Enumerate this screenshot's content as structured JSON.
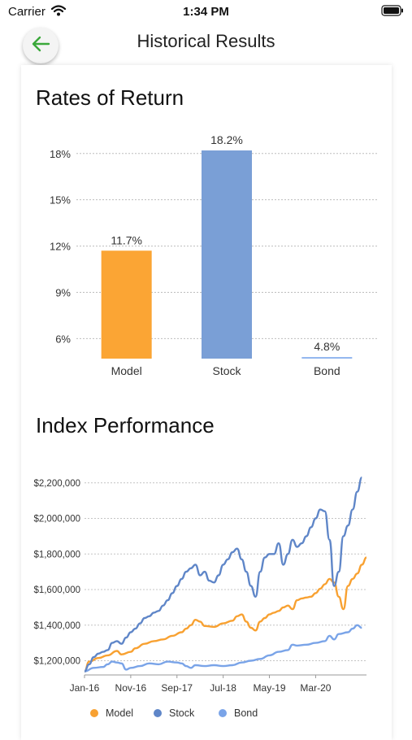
{
  "status_bar": {
    "carrier": "Carrier",
    "time": "1:34 PM"
  },
  "nav": {
    "title": "Historical Results"
  },
  "returns": {
    "title": "Rates of Return",
    "chart_data": {
      "type": "bar",
      "categories": [
        "Model",
        "Stock",
        "Bond"
      ],
      "values": [
        11.7,
        18.2,
        4.8
      ],
      "value_labels": [
        "11.7%",
        "18.2%",
        "4.8%"
      ],
      "colors": [
        "#fba534",
        "#7a9fd6",
        "#8db3ee"
      ],
      "yticks": [
        "6%",
        "9%",
        "12%",
        "15%",
        "18%"
      ],
      "ytick_values": [
        6,
        9,
        12,
        15,
        18
      ],
      "ylim": [
        4.7,
        18.2
      ],
      "grid": true
    }
  },
  "performance": {
    "title": "Index Performance",
    "chart_data": {
      "type": "line",
      "x_tick_labels": [
        "Jan-16",
        "Nov-16",
        "Sep-17",
        "Jul-18",
        "May-19",
        "Mar-20"
      ],
      "y_tick_labels": [
        "$1,200,000",
        "$1,400,000",
        "$1,600,000",
        "$1,800,000",
        "$2,000,000",
        "$2,200,000"
      ],
      "y_tick_values": [
        1200000,
        1400000,
        1600000,
        1800000,
        2000000,
        2200000
      ],
      "ylim": [
        1120000,
        2240000
      ],
      "grid": true,
      "legend_position": "bottom",
      "series": [
        {
          "name": "Model",
          "color": "#f8a131",
          "points": [
            [
              0,
              1140000
            ],
            [
              1,
              1195000
            ],
            [
              3,
              1215000
            ],
            [
              5,
              1230000
            ],
            [
              7,
              1255000
            ],
            [
              8,
              1235000
            ],
            [
              10,
              1250000
            ],
            [
              11,
              1270000
            ],
            [
              13,
              1295000
            ],
            [
              15,
              1310000
            ],
            [
              17,
              1320000
            ],
            [
              19,
              1340000
            ],
            [
              21,
              1360000
            ],
            [
              22,
              1380000
            ],
            [
              23,
              1400000
            ],
            [
              24,
              1430000
            ],
            [
              25,
              1420000
            ],
            [
              26,
              1395000
            ],
            [
              28,
              1390000
            ],
            [
              30,
              1410000
            ],
            [
              32,
              1425000
            ],
            [
              33,
              1450000
            ],
            [
              34,
              1460000
            ],
            [
              35,
              1420000
            ],
            [
              36,
              1385000
            ],
            [
              37,
              1370000
            ],
            [
              38,
              1420000
            ],
            [
              39,
              1440000
            ],
            [
              40,
              1460000
            ],
            [
              41,
              1470000
            ],
            [
              42,
              1480000
            ],
            [
              43,
              1500000
            ],
            [
              44,
              1510000
            ],
            [
              45,
              1490000
            ],
            [
              46,
              1540000
            ],
            [
              47,
              1550000
            ],
            [
              48,
              1555000
            ],
            [
              49,
              1560000
            ],
            [
              50,
              1580000
            ],
            [
              51,
              1605000
            ],
            [
              52,
              1630000
            ],
            [
              53,
              1660000
            ],
            [
              54,
              1640000
            ],
            [
              55,
              1560000
            ],
            [
              56,
              1490000
            ],
            [
              57,
              1620000
            ],
            [
              58,
              1660000
            ],
            [
              59,
              1690000
            ],
            [
              60,
              1740000
            ],
            [
              61,
              1780000
            ]
          ]
        },
        {
          "name": "Stock",
          "color": "#5f86c8",
          "points": [
            [
              0,
              1140000
            ],
            [
              1,
              1180000
            ],
            [
              2,
              1220000
            ],
            [
              3,
              1240000
            ],
            [
              4,
              1250000
            ],
            [
              5,
              1260000
            ],
            [
              6,
              1300000
            ],
            [
              7,
              1310000
            ],
            [
              8,
              1295000
            ],
            [
              9,
              1330000
            ],
            [
              10,
              1360000
            ],
            [
              11,
              1380000
            ],
            [
              12,
              1410000
            ],
            [
              13,
              1440000
            ],
            [
              14,
              1450000
            ],
            [
              15,
              1470000
            ],
            [
              16,
              1480000
            ],
            [
              17,
              1510000
            ],
            [
              18,
              1540000
            ],
            [
              19,
              1580000
            ],
            [
              20,
              1620000
            ],
            [
              21,
              1660000
            ],
            [
              22,
              1700000
            ],
            [
              23,
              1720000
            ],
            [
              24,
              1740000
            ],
            [
              25,
              1680000
            ],
            [
              26,
              1700000
            ],
            [
              27,
              1650000
            ],
            [
              28,
              1640000
            ],
            [
              29,
              1680000
            ],
            [
              30,
              1740000
            ],
            [
              31,
              1770000
            ],
            [
              32,
              1810000
            ],
            [
              33,
              1830000
            ],
            [
              34,
              1770000
            ],
            [
              35,
              1700000
            ],
            [
              36,
              1620000
            ],
            [
              37,
              1560000
            ],
            [
              38,
              1700000
            ],
            [
              39,
              1780000
            ],
            [
              40,
              1800000
            ],
            [
              41,
              1800000
            ],
            [
              42,
              1860000
            ],
            [
              43,
              1740000
            ],
            [
              44,
              1800000
            ],
            [
              45,
              1880000
            ],
            [
              46,
              1840000
            ],
            [
              47,
              1860000
            ],
            [
              48,
              1900000
            ],
            [
              49,
              1950000
            ],
            [
              50,
              2000000
            ],
            [
              51,
              2050000
            ],
            [
              52,
              2040000
            ],
            [
              53,
              1880000
            ],
            [
              54,
              1620000
            ],
            [
              55,
              1700000
            ],
            [
              56,
              1900000
            ],
            [
              57,
              1960000
            ],
            [
              58,
              2050000
            ],
            [
              59,
              2150000
            ],
            [
              60,
              2230000
            ]
          ]
        },
        {
          "name": "Bond",
          "color": "#7aa4e8",
          "points": [
            [
              0,
              1140000
            ],
            [
              2,
              1160000
            ],
            [
              4,
              1165000
            ],
            [
              5,
              1180000
            ],
            [
              6,
              1195000
            ],
            [
              7,
              1190000
            ],
            [
              8,
              1185000
            ],
            [
              9,
              1150000
            ],
            [
              10,
              1160000
            ],
            [
              12,
              1170000
            ],
            [
              14,
              1185000
            ],
            [
              16,
              1180000
            ],
            [
              18,
              1195000
            ],
            [
              20,
              1190000
            ],
            [
              21,
              1185000
            ],
            [
              22,
              1170000
            ],
            [
              23,
              1160000
            ],
            [
              24,
              1175000
            ],
            [
              26,
              1170000
            ],
            [
              28,
              1175000
            ],
            [
              30,
              1170000
            ],
            [
              32,
              1175000
            ],
            [
              34,
              1190000
            ],
            [
              36,
              1200000
            ],
            [
              38,
              1210000
            ],
            [
              40,
              1230000
            ],
            [
              42,
              1250000
            ],
            [
              44,
              1260000
            ],
            [
              45,
              1290000
            ],
            [
              46,
              1285000
            ],
            [
              48,
              1290000
            ],
            [
              50,
              1300000
            ],
            [
              52,
              1310000
            ],
            [
              53,
              1340000
            ],
            [
              54,
              1320000
            ],
            [
              55,
              1350000
            ],
            [
              57,
              1360000
            ],
            [
              58,
              1380000
            ],
            [
              59,
              1400000
            ],
            [
              60,
              1385000
            ]
          ]
        }
      ]
    }
  }
}
